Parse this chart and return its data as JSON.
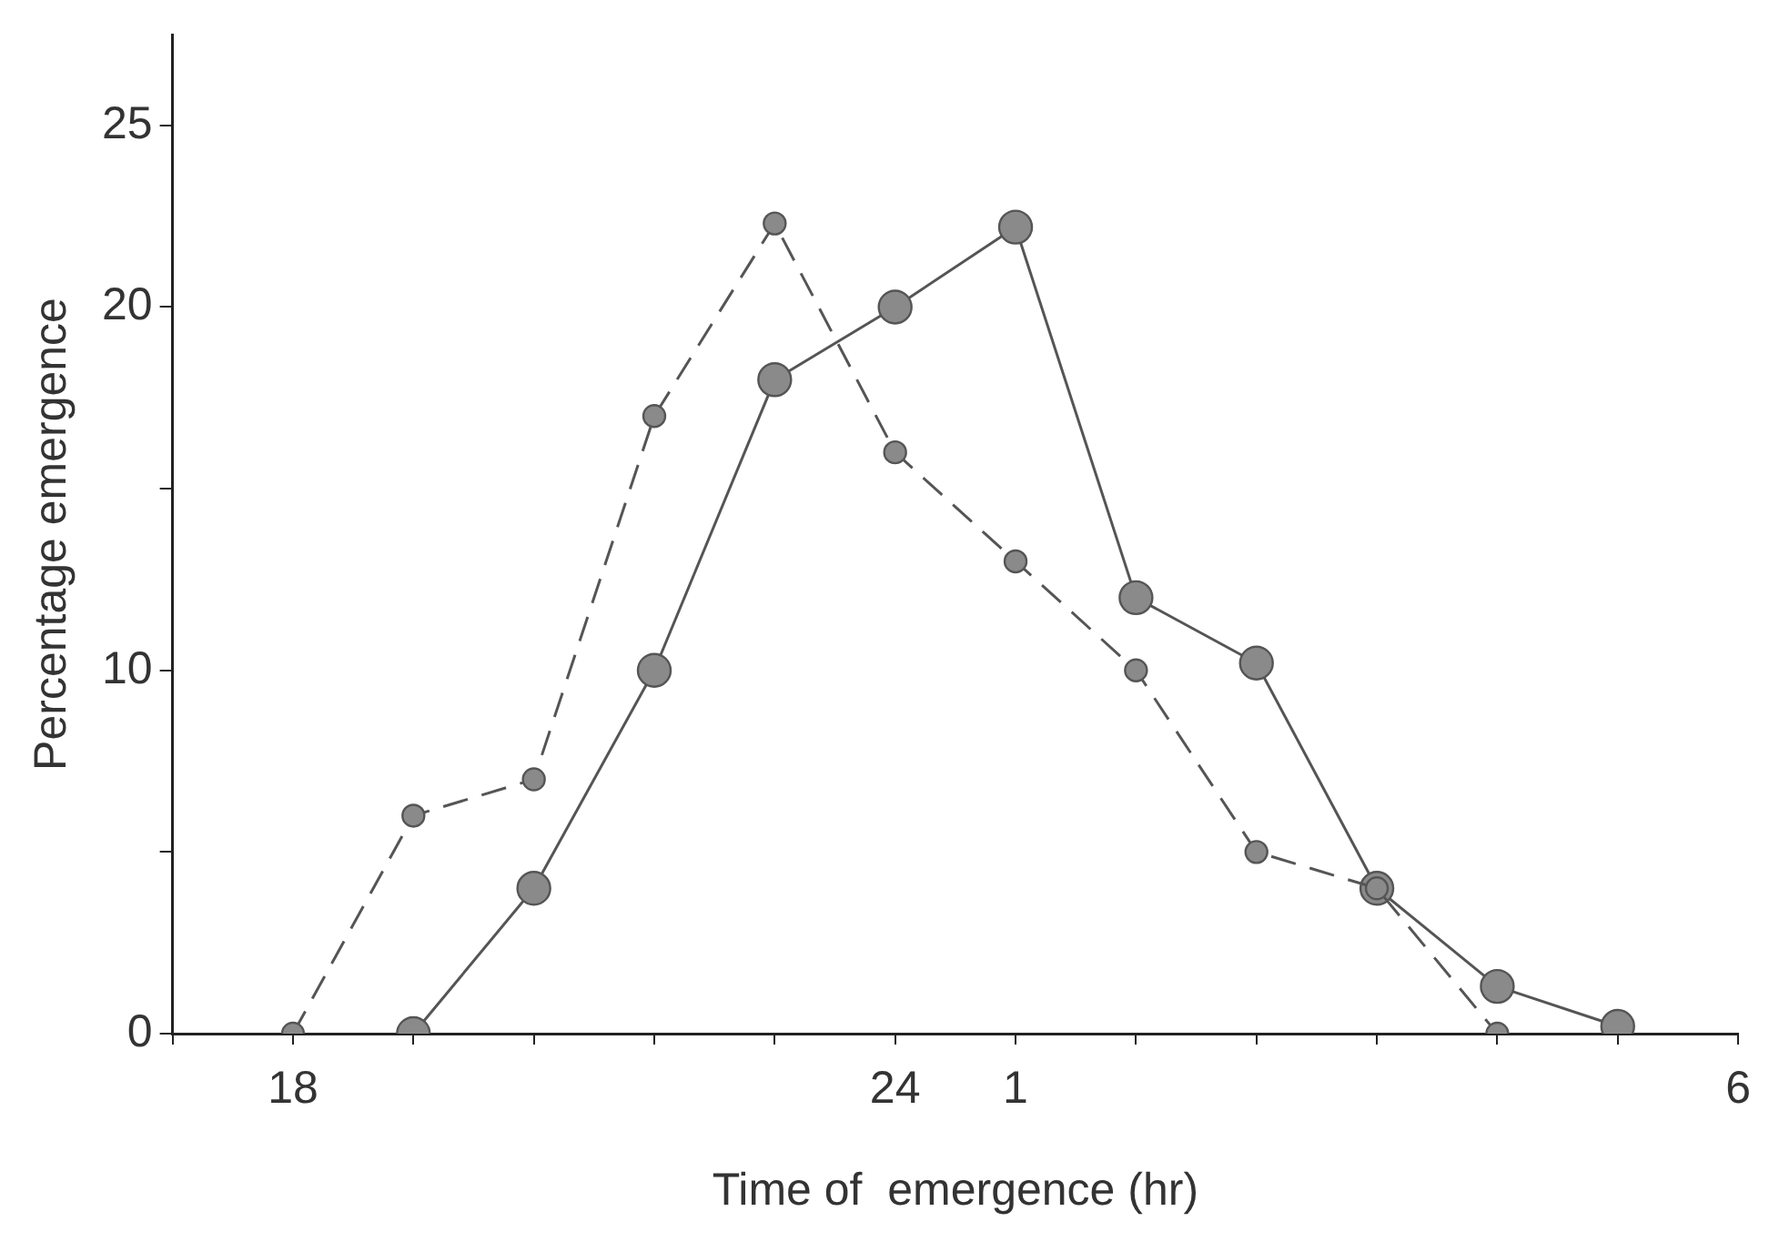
{
  "chart_data": {
    "type": "line",
    "xlabel": "Time of  emergence (hr)",
    "ylabel": "Percentage emergence",
    "categories": [
      null,
      "18",
      null,
      null,
      null,
      null,
      "24",
      "1",
      null,
      null,
      null,
      null,
      null,
      "6"
    ],
    "ylim": [
      0,
      27.5
    ],
    "yticks": [
      0,
      {
        "value": 5,
        "label": null
      },
      10,
      {
        "value": 15,
        "label": null
      },
      20,
      25
    ],
    "grid": false,
    "legend": false,
    "marker": "circle",
    "series": [
      {
        "color": "#555555",
        "line_style": "dashed",
        "values": [
          null,
          0,
          6,
          7,
          17,
          22.3,
          16,
          13,
          10,
          5,
          4,
          0,
          null,
          null
        ]
      },
      {
        "color": "#555555",
        "line_style": "solid",
        "values": [
          null,
          null,
          0,
          4,
          10,
          18,
          20,
          22.2,
          12,
          10.2,
          4,
          1.3,
          0.2,
          null
        ]
      }
    ]
  }
}
